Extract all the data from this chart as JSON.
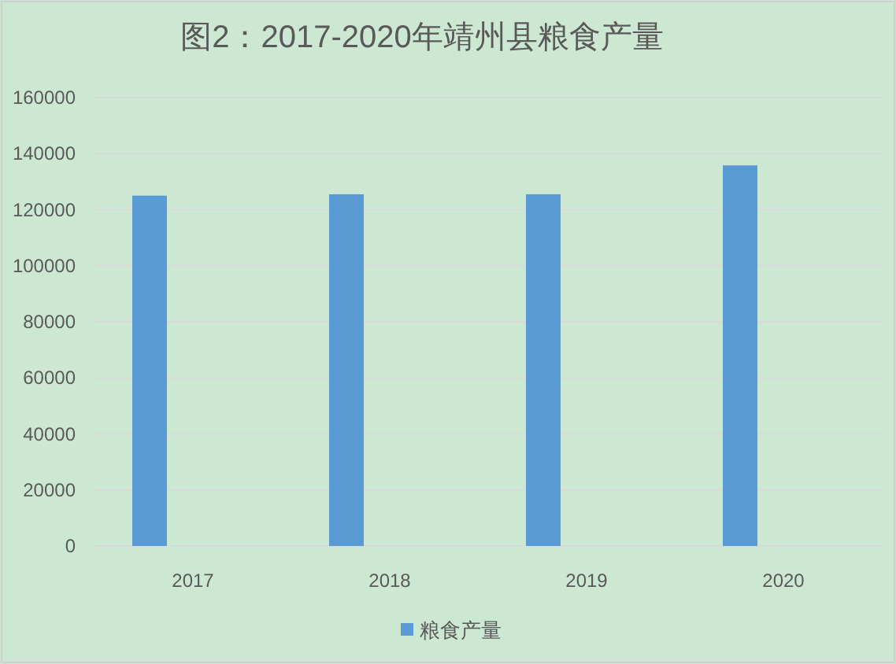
{
  "chart_data": {
    "type": "bar",
    "title": "图2：2017-2020年靖州县粮食产量",
    "categories": [
      "2017",
      "2018",
      "2019",
      "2020"
    ],
    "series": [
      {
        "name": "粮食产量",
        "color": "#5b9bd5",
        "values": [
          125000,
          125500,
          125500,
          135800
        ]
      }
    ],
    "ylim": [
      0,
      160000
    ],
    "yticks": [
      0,
      20000,
      40000,
      60000,
      80000,
      100000,
      120000,
      140000,
      160000
    ],
    "grid": "y",
    "legend": "bottom"
  }
}
